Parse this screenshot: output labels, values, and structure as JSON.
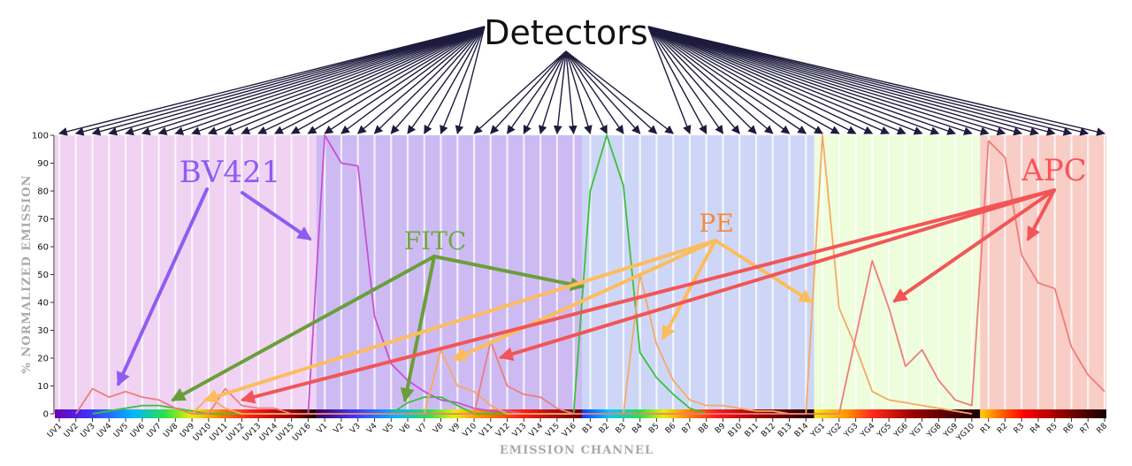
{
  "chart_data": {
    "type": "line",
    "title": "Detectors",
    "xlabel": "EMISSION CHANNEL",
    "ylabel": "% NORMALIZED EMISSION",
    "ylim": [
      0,
      100
    ],
    "yticks": [
      0,
      10,
      20,
      30,
      40,
      50,
      60,
      70,
      80,
      90,
      100
    ],
    "grid": true,
    "categories": [
      "UV1",
      "UV2",
      "UV3",
      "UV4",
      "UV5",
      "UV6",
      "UV7",
      "UV8",
      "UV9",
      "UV10",
      "UV11",
      "UV12",
      "UV13",
      "UV14",
      "UV15",
      "UV16",
      "V1",
      "V2",
      "V3",
      "V4",
      "V5",
      "V6",
      "V7",
      "V8",
      "V9",
      "V10",
      "V11",
      "V12",
      "V13",
      "V14",
      "V15",
      "V16",
      "B1",
      "B2",
      "B3",
      "B4",
      "B5",
      "B6",
      "B7",
      "B8",
      "B9",
      "B10",
      "B11",
      "B12",
      "B13",
      "B14",
      "YG1",
      "YG2",
      "YG3",
      "YG4",
      "YG5",
      "YG6",
      "YG7",
      "YG8",
      "YG9",
      "YG10",
      "R1",
      "R2",
      "R3",
      "R4",
      "R5",
      "R6",
      "R7",
      "R8"
    ],
    "lasers": [
      {
        "prefix": "UV",
        "count": 16,
        "color": "#f0d2f3"
      },
      {
        "prefix": "V",
        "count": 16,
        "color": "#cdbaf3"
      },
      {
        "prefix": "B",
        "count": 14,
        "color": "#cdd6f7"
      },
      {
        "prefix": "YG",
        "count": 10,
        "color": "#eefddb"
      },
      {
        "prefix": "R",
        "count": 8,
        "color": "#f8cdc6"
      }
    ],
    "series": [
      {
        "name": "BV421",
        "color": "#c94fd6",
        "points": [
          [
            15,
            0
          ],
          [
            16,
            100
          ],
          [
            17,
            90
          ],
          [
            18,
            89
          ],
          [
            19,
            35
          ],
          [
            20,
            18
          ],
          [
            21,
            12
          ],
          [
            22,
            8
          ],
          [
            23,
            5
          ],
          [
            24,
            4
          ],
          [
            25,
            2
          ],
          [
            26,
            1
          ],
          [
            27,
            1
          ],
          [
            28,
            0
          ]
        ]
      },
      {
        "name": "FITC",
        "color": "#37c339",
        "points": [
          [
            2,
            0
          ],
          [
            4,
            2
          ],
          [
            5,
            3
          ],
          [
            6,
            3
          ],
          [
            7,
            2
          ],
          [
            8,
            1
          ],
          [
            9,
            0
          ],
          [
            20,
            0
          ],
          [
            21,
            4
          ],
          [
            22,
            6
          ],
          [
            23,
            6
          ],
          [
            24,
            3
          ],
          [
            25,
            0
          ],
          [
            31,
            0
          ],
          [
            32,
            80
          ],
          [
            33,
            100
          ],
          [
            34,
            82
          ],
          [
            35,
            22
          ],
          [
            36,
            13
          ],
          [
            37,
            7
          ],
          [
            38,
            2
          ],
          [
            39,
            0
          ]
        ]
      },
      {
        "name": "PE",
        "color": "#f6a964",
        "points": [
          [
            8,
            0
          ],
          [
            9,
            6
          ],
          [
            10,
            2
          ],
          [
            11,
            0
          ],
          [
            22,
            0
          ],
          [
            23,
            23
          ],
          [
            24,
            10
          ],
          [
            25,
            8
          ],
          [
            26,
            3
          ],
          [
            27,
            0
          ],
          [
            34,
            0
          ],
          [
            35,
            50
          ],
          [
            36,
            25
          ],
          [
            37,
            12
          ],
          [
            38,
            5
          ],
          [
            39,
            3
          ],
          [
            40,
            3
          ],
          [
            41,
            2
          ],
          [
            42,
            1
          ],
          [
            43,
            1
          ],
          [
            44,
            0
          ],
          [
            45,
            0
          ],
          [
            46,
            100
          ],
          [
            47,
            38
          ],
          [
            48,
            24
          ],
          [
            49,
            8
          ],
          [
            50,
            5
          ],
          [
            51,
            4
          ],
          [
            52,
            3
          ],
          [
            53,
            2
          ],
          [
            54,
            1
          ],
          [
            55,
            0
          ]
        ]
      },
      {
        "name": "APC",
        "color": "#ef7c7e",
        "points": [
          [
            1,
            0
          ],
          [
            2,
            9
          ],
          [
            3,
            6
          ],
          [
            4,
            8
          ],
          [
            5,
            6
          ],
          [
            6,
            5
          ],
          [
            7,
            2
          ],
          [
            8,
            0
          ],
          [
            9,
            0
          ],
          [
            10,
            9
          ],
          [
            11,
            3
          ],
          [
            12,
            2
          ],
          [
            13,
            2
          ],
          [
            14,
            0
          ],
          [
            25,
            0
          ],
          [
            26,
            26
          ],
          [
            27,
            10
          ],
          [
            28,
            7
          ],
          [
            29,
            6
          ],
          [
            30,
            2
          ],
          [
            31,
            0
          ],
          [
            47,
            0
          ],
          [
            49,
            55
          ],
          [
            50,
            38
          ],
          [
            51,
            17
          ],
          [
            52,
            23
          ],
          [
            53,
            12
          ],
          [
            54,
            5
          ],
          [
            55,
            3
          ],
          [
            56,
            98
          ],
          [
            57,
            92
          ],
          [
            58,
            57
          ],
          [
            59,
            47
          ],
          [
            60,
            45
          ],
          [
            61,
            24
          ],
          [
            62,
            14
          ],
          [
            63,
            8
          ]
        ]
      }
    ],
    "annotations": [
      {
        "text": "BV421",
        "color": "#8f5cf1",
        "arrow_color": "#8f5cf1"
      },
      {
        "text": "FITC",
        "color": "#71a941",
        "arrow_color": "#6b9e3b"
      },
      {
        "text": "PE",
        "color": "#f7893d",
        "arrow_color": "#fcbd5c"
      },
      {
        "text": "APC",
        "color": "#f8545a",
        "arrow_color": "#f25557"
      }
    ]
  }
}
